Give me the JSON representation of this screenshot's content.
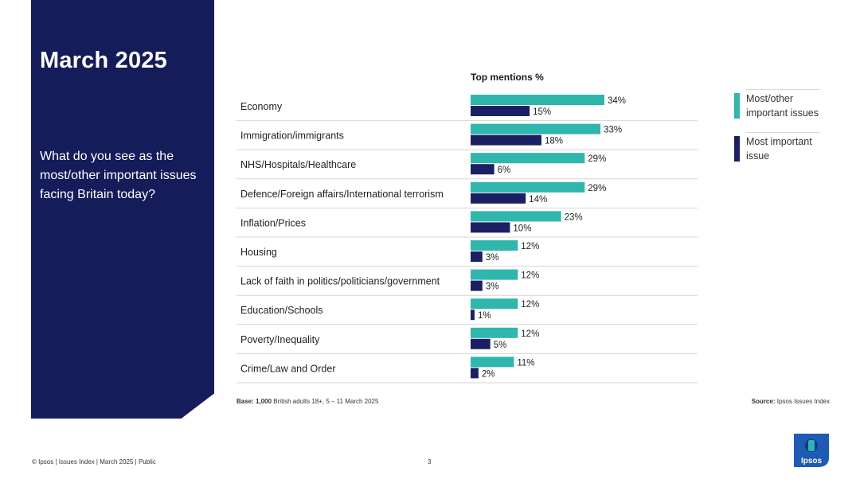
{
  "panel": {
    "title": "March 2025",
    "question": "What do you see as the most/other important issues facing Britain today?"
  },
  "legend": {
    "series_a": "Most/other important issues",
    "series_b": "Most important issue"
  },
  "notes": {
    "base_bold": "Base:",
    "base_n": "1,000",
    "base_rest": "British adults 18+, 5 – 11 March 2025",
    "source_bold": "Source:",
    "source_rest": "Ipsos Issues Index"
  },
  "footer": {
    "left": "© Ipsos | Issues Index | March 2025 | Public",
    "page": "3",
    "logo_text": "Ipsos"
  },
  "colors": {
    "panel": "#141c5a",
    "teal": "#2fb6ad",
    "navy": "#1b2064"
  },
  "chart_data": {
    "type": "bar",
    "title": "Top mentions %",
    "categories": [
      "Economy",
      "Immigration/immigrants",
      "NHS/Hospitals/Healthcare",
      "Defence/Foreign affairs/International terrorism",
      "Inflation/Prices",
      "Housing",
      "Lack of faith in politics/politicians/government",
      "Education/Schools",
      "Poverty/Inequality",
      "Crime/Law and Order"
    ],
    "series": [
      {
        "name": "Most/other important issues",
        "color": "#2fb6ad",
        "values": [
          34,
          33,
          29,
          29,
          23,
          12,
          12,
          12,
          12,
          11
        ]
      },
      {
        "name": "Most important issue",
        "color": "#1b2064",
        "values": [
          15,
          18,
          6,
          14,
          10,
          3,
          3,
          1,
          5,
          2
        ]
      }
    ],
    "value_suffix": "%",
    "orientation": "horizontal",
    "xlim": [
      0,
      50
    ],
    "legend_position": "right"
  }
}
